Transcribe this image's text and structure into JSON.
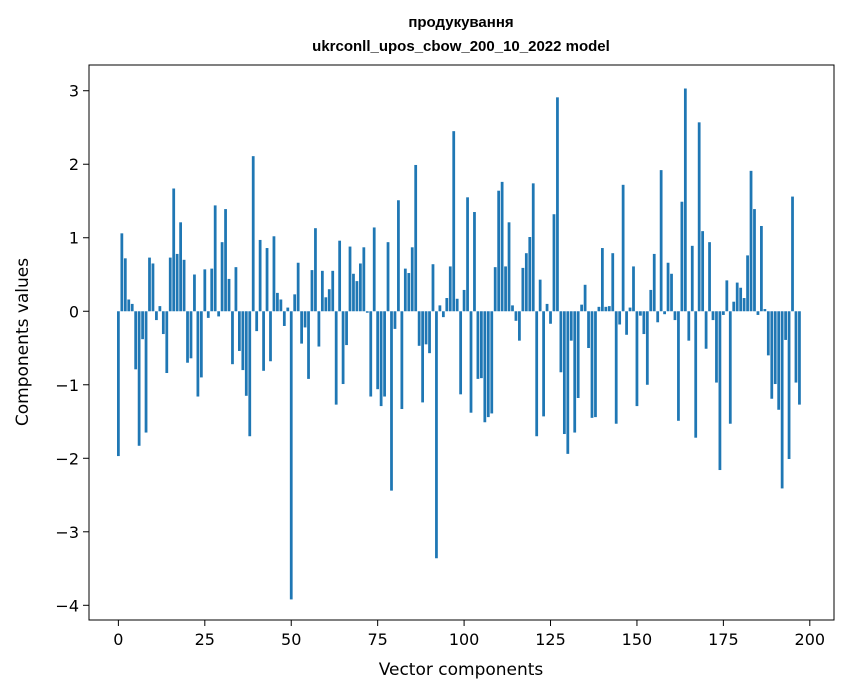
{
  "chart_data": {
    "type": "bar",
    "title": [
      "продукування",
      "ukrconll_upos_cbow_200_10_2022 model"
    ],
    "xlabel": "Vector components",
    "ylabel": "Components values",
    "xlim": [
      -8.5,
      207
    ],
    "ylim": [
      -4.2,
      3.35
    ],
    "xticks": [
      0,
      25,
      50,
      75,
      100,
      125,
      150,
      175,
      200
    ],
    "yticks": [
      -4,
      -3,
      -2,
      -1,
      0,
      1,
      2,
      3
    ],
    "xtick_labels": [
      "0",
      "25",
      "50",
      "75",
      "100",
      "125",
      "150",
      "175",
      "200"
    ],
    "ytick_labels": [
      "−4",
      "−3",
      "−2",
      "−1",
      "0",
      "1",
      "2",
      "3"
    ],
    "grid": false,
    "bar_color": "#1f77b4",
    "values": [
      -1.97,
      1.06,
      0.72,
      0.16,
      0.1,
      -0.79,
      -1.83,
      -0.38,
      -1.65,
      0.73,
      0.65,
      -0.12,
      0.07,
      -0.31,
      -0.84,
      0.73,
      1.67,
      0.78,
      1.21,
      0.7,
      -0.7,
      -0.64,
      0.5,
      -1.16,
      -0.9,
      0.57,
      -0.09,
      0.58,
      1.44,
      -0.07,
      0.94,
      1.39,
      0.44,
      -0.72,
      0.6,
      -0.54,
      -0.8,
      -1.15,
      -1.7,
      2.11,
      -0.27,
      0.97,
      -0.81,
      0.86,
      -0.68,
      1.02,
      0.25,
      0.16,
      -0.2,
      0.05,
      -3.92,
      0.23,
      0.66,
      -0.44,
      -0.22,
      -0.92,
      0.56,
      1.13,
      -0.48,
      0.55,
      0.19,
      0.3,
      0.55,
      -1.27,
      0.96,
      -0.99,
      -0.46,
      0.88,
      0.51,
      0.41,
      0.65,
      0.87,
      -0.02,
      -1.16,
      1.14,
      -1.06,
      -1.29,
      -1.16,
      0.94,
      -2.44,
      -0.24,
      1.51,
      -1.33,
      0.58,
      0.52,
      0.87,
      1.99,
      -0.47,
      -1.24,
      -0.45,
      -0.57,
      0.64,
      -3.36,
      0.08,
      -0.08,
      0.18,
      0.61,
      2.45,
      0.17,
      -1.13,
      0.29,
      1.55,
      -1.38,
      1.35,
      -0.92,
      -0.91,
      -1.51,
      -1.44,
      -1.39,
      0.6,
      1.64,
      1.76,
      0.61,
      1.21,
      0.08,
      -0.13,
      -0.4,
      0.59,
      0.79,
      1.01,
      1.74,
      -1.7,
      0.43,
      -1.43,
      0.1,
      -0.17,
      1.32,
      2.91,
      -0.83,
      -1.67,
      -1.94,
      -0.4,
      -1.65,
      -1.18,
      0.09,
      0.36,
      -0.5,
      -1.45,
      -1.44,
      0.06,
      0.86,
      0.06,
      0.07,
      0.79,
      -1.53,
      -0.18,
      1.72,
      -0.32,
      0.05,
      0.61,
      -1.29,
      -0.06,
      -0.31,
      -1.0,
      0.29,
      0.78,
      -0.15,
      1.92,
      -0.04,
      0.66,
      0.51,
      -0.12,
      -1.49,
      1.49,
      3.03,
      -0.4,
      0.89,
      -1.72,
      2.57,
      1.09,
      -0.51,
      0.94,
      -0.12,
      -0.97,
      -2.16,
      -0.05,
      0.42,
      -1.53,
      0.13,
      0.39,
      0.32,
      0.18,
      0.76,
      1.91,
      1.39,
      -0.05,
      1.16,
      0.03,
      -0.6,
      -1.19,
      -0.99,
      -1.34,
      -2.41,
      -0.39,
      -2.01,
      1.56,
      -0.97,
      -1.27
    ]
  }
}
